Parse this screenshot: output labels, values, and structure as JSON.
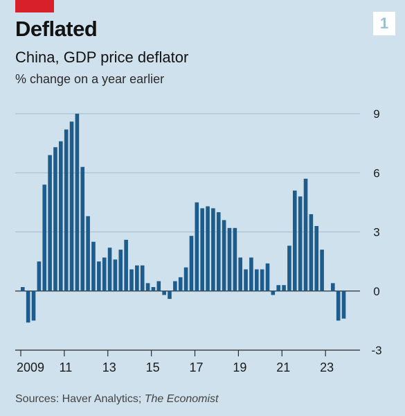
{
  "header": {
    "title": "Deflated",
    "subtitle": "China, GDP price deflator",
    "unit": "% change on a year earlier",
    "badge": "1"
  },
  "footer": {
    "source_prefix": "Sources: Haver Analytics; ",
    "source_italic": "The Economist"
  },
  "colors": {
    "background": "#cfe1ec",
    "bar": "#1e5c8c",
    "accent_red": "#d7202a",
    "gridline": "#a7c2d4"
  },
  "chart_data": {
    "type": "bar",
    "title": "China, GDP price deflator",
    "ylabel": "% change on a year earlier",
    "ylim": [
      -3,
      9
    ],
    "yticks": [
      9,
      6,
      3,
      0,
      -3
    ],
    "grid": true,
    "x_tick_labels": [
      "2009",
      "11",
      "13",
      "15",
      "17",
      "19",
      "21",
      "23"
    ],
    "x_tick_quarters": [
      0,
      8,
      16,
      24,
      32,
      40,
      48,
      56
    ],
    "x_start": "2009 Q1",
    "frequency": "quarterly",
    "values": [
      0.2,
      -1.6,
      -1.5,
      1.5,
      5.4,
      6.9,
      7.3,
      7.6,
      8.2,
      8.6,
      9.0,
      6.3,
      3.8,
      2.5,
      1.5,
      1.7,
      2.2,
      1.6,
      2.1,
      2.6,
      1.1,
      1.3,
      1.3,
      0.4,
      0.2,
      0.5,
      -0.2,
      -0.4,
      0.5,
      0.7,
      1.2,
      2.8,
      4.5,
      4.2,
      4.3,
      4.2,
      4.0,
      3.6,
      3.2,
      3.2,
      1.7,
      1.1,
      1.7,
      1.1,
      1.1,
      1.4,
      -0.2,
      0.3,
      0.3,
      2.3,
      5.1,
      4.8,
      5.7,
      3.9,
      3.3,
      2.1,
      0.0,
      0.4,
      -1.5,
      -1.4
    ]
  }
}
